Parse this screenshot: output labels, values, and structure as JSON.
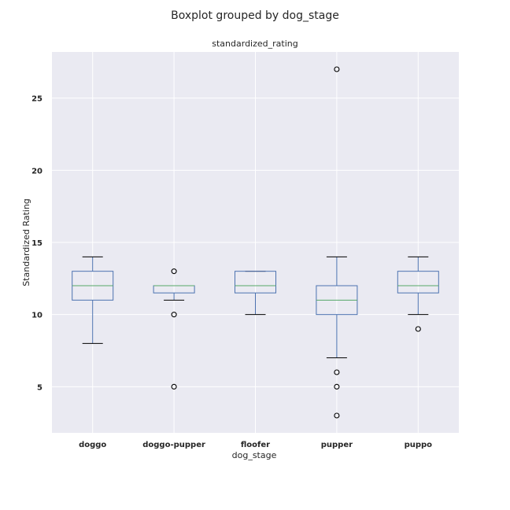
{
  "chart_data": {
    "type": "boxplot",
    "suptitle": "Boxplot grouped by dog_stage",
    "title": "standardized_rating",
    "xlabel": "dog_stage",
    "ylabel": "Standardized Rating",
    "ylim": [
      1.8,
      28.2
    ],
    "yticks": [
      5,
      10,
      15,
      20,
      25
    ],
    "grid": true,
    "colors": {
      "background": "#EAEAF2",
      "grid": "#FFFFFF",
      "box": "#4C72B0",
      "median": "#55A868",
      "whisker_cap": "#000000",
      "flier": "#000000"
    },
    "categories": [
      "doggo",
      "doggo-pupper",
      "floofer",
      "pupper",
      "puppo"
    ],
    "boxes": [
      {
        "category": "doggo",
        "whisker_low": 8,
        "q1": 11,
        "median": 12,
        "q3": 13,
        "whisker_high": 14,
        "fliers": []
      },
      {
        "category": "doggo-pupper",
        "whisker_low": 11,
        "q1": 11.5,
        "median": 12,
        "q3": 12,
        "whisker_high": 12,
        "fliers": [
          13,
          10,
          5
        ]
      },
      {
        "category": "floofer",
        "whisker_low": 10,
        "q1": 11.5,
        "median": 12,
        "q3": 13,
        "whisker_high": 13,
        "fliers": []
      },
      {
        "category": "pupper",
        "whisker_low": 7,
        "q1": 10,
        "median": 11,
        "q3": 12,
        "whisker_high": 14,
        "fliers": [
          27,
          6,
          5,
          3
        ]
      },
      {
        "category": "puppo",
        "whisker_low": 10,
        "q1": 11.5,
        "median": 12,
        "q3": 13,
        "whisker_high": 14,
        "fliers": [
          9
        ]
      }
    ]
  }
}
